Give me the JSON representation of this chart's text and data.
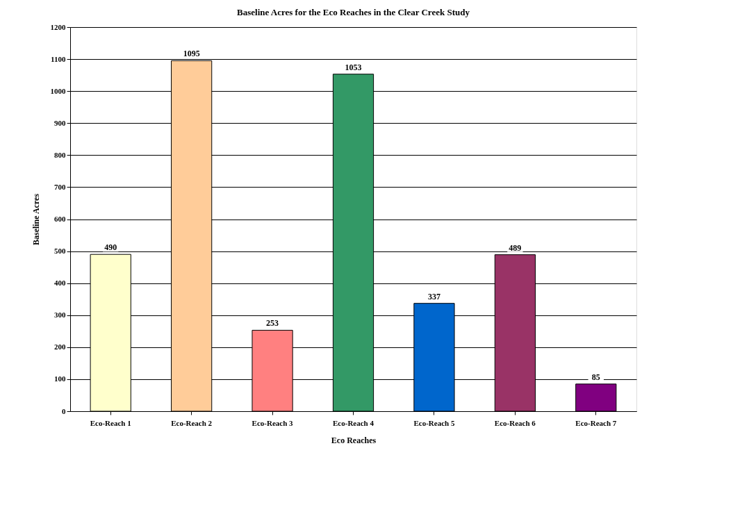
{
  "chart_data": {
    "type": "bar",
    "title": "Baseline Acres for the Eco Reaches in the Clear Creek Study",
    "xlabel": "Eco Reaches",
    "ylabel": "Baseline Acres",
    "categories": [
      "Eco-Reach 1",
      "Eco-Reach 2",
      "Eco-Reach 3",
      "Eco-Reach 4",
      "Eco-Reach 5",
      "Eco-Reach 6",
      "Eco-Reach 7"
    ],
    "values": [
      490,
      1095,
      253,
      1053,
      337,
      489,
      85
    ],
    "colors": [
      "#ffffcc",
      "#ffcc99",
      "#ff8080",
      "#339966",
      "#0066cc",
      "#993366",
      "#800080"
    ],
    "ylim": [
      0,
      1200
    ],
    "yticks": [
      0,
      100,
      200,
      300,
      400,
      500,
      600,
      700,
      800,
      900,
      1000,
      1100,
      1200
    ],
    "grid": "y",
    "data_labels": true,
    "legend": false
  }
}
